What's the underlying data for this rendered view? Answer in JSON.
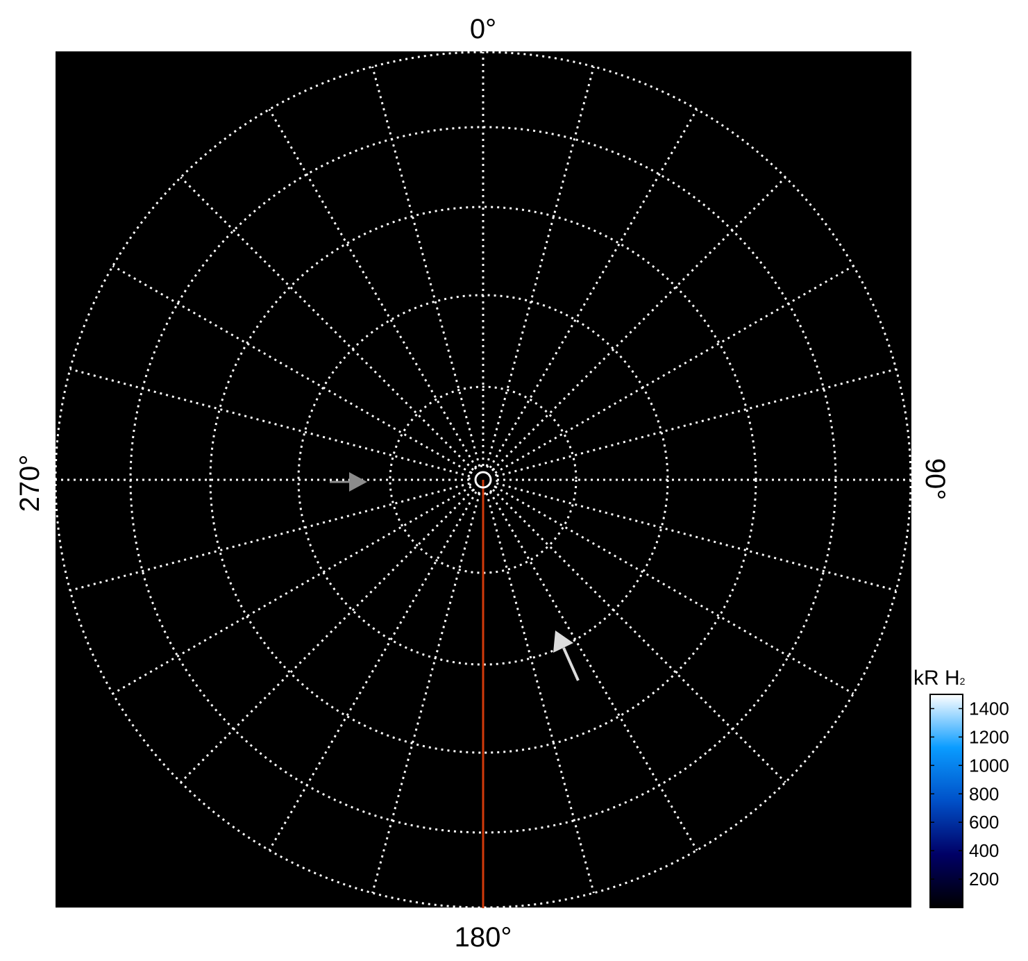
{
  "chart_data": {
    "type": "polar",
    "projection": "polar (pole-centered)",
    "angle_labels": [
      {
        "angle": 0,
        "text": "0°"
      },
      {
        "angle": 90,
        "text": "90°"
      },
      {
        "angle": 180,
        "text": "180°"
      },
      {
        "angle": 270,
        "text": "270°"
      }
    ],
    "meridian_spacing_deg": 15,
    "parallel_circles": 6,
    "grid": true,
    "grid_style": "dotted white",
    "background": "#000000",
    "highlighted_meridian": {
      "angle": 180,
      "color": "#d23a0a"
    },
    "annotations": [
      {
        "type": "arrow",
        "color": "#8c8c8c",
        "direction": "right",
        "position": "left of pole, near 270° meridian"
      },
      {
        "type": "arrow",
        "color": "#dcdcdc",
        "direction": "up-left",
        "position": "between 150° and 165° meridians"
      }
    ],
    "colorbar": {
      "title": "kR H",
      "title_subscript": "2",
      "range": [
        0,
        1500
      ],
      "ticks": [
        200,
        400,
        600,
        800,
        1000,
        1200,
        1400
      ],
      "colors": [
        "#000000",
        "#000066",
        "#0050c8",
        "#0a9cff",
        "#ffffff"
      ],
      "placement": "right"
    }
  }
}
